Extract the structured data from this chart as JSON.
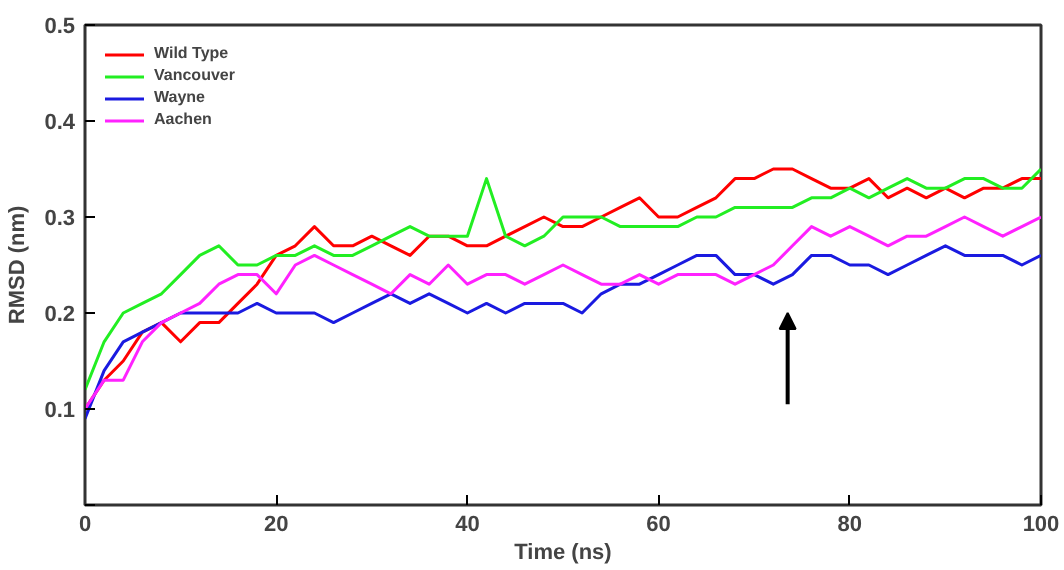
{
  "chart_data": {
    "type": "line",
    "xlabel": "Time (ns)",
    "ylabel": "RMSD (nm)",
    "x": [
      0,
      2,
      4,
      6,
      8,
      10,
      12,
      14,
      16,
      18,
      20,
      22,
      24,
      26,
      28,
      30,
      32,
      34,
      36,
      38,
      40,
      42,
      44,
      46,
      48,
      50,
      52,
      54,
      56,
      58,
      60,
      62,
      64,
      66,
      68,
      70,
      72,
      74,
      76,
      78,
      80,
      82,
      84,
      86,
      88,
      90,
      92,
      94,
      96,
      98,
      100
    ],
    "series": [
      {
        "name": "Wild Type",
        "color": "#ff0000",
        "values": [
          0.1,
          0.13,
          0.15,
          0.18,
          0.19,
          0.17,
          0.19,
          0.19,
          0.21,
          0.23,
          0.26,
          0.27,
          0.29,
          0.27,
          0.27,
          0.28,
          0.27,
          0.26,
          0.28,
          0.28,
          0.27,
          0.27,
          0.28,
          0.29,
          0.3,
          0.29,
          0.29,
          0.3,
          0.31,
          0.32,
          0.3,
          0.3,
          0.31,
          0.32,
          0.34,
          0.34,
          0.35,
          0.35,
          0.34,
          0.33,
          0.33,
          0.34,
          0.32,
          0.33,
          0.32,
          0.33,
          0.32,
          0.33,
          0.33,
          0.34,
          0.34
        ]
      },
      {
        "name": "Vancouver",
        "color": "#22ee22",
        "values": [
          0.12,
          0.17,
          0.2,
          0.21,
          0.22,
          0.24,
          0.26,
          0.27,
          0.25,
          0.25,
          0.26,
          0.26,
          0.27,
          0.26,
          0.26,
          0.27,
          0.28,
          0.29,
          0.28,
          0.28,
          0.28,
          0.34,
          0.28,
          0.27,
          0.28,
          0.3,
          0.3,
          0.3,
          0.29,
          0.29,
          0.29,
          0.29,
          0.3,
          0.3,
          0.31,
          0.31,
          0.31,
          0.31,
          0.32,
          0.32,
          0.33,
          0.32,
          0.33,
          0.34,
          0.33,
          0.33,
          0.34,
          0.34,
          0.33,
          0.33,
          0.35
        ]
      },
      {
        "name": "Wayne",
        "color": "#1a1ae0",
        "values": [
          0.09,
          0.14,
          0.17,
          0.18,
          0.19,
          0.2,
          0.2,
          0.2,
          0.2,
          0.21,
          0.2,
          0.2,
          0.2,
          0.19,
          0.2,
          0.21,
          0.22,
          0.21,
          0.22,
          0.21,
          0.2,
          0.21,
          0.2,
          0.21,
          0.21,
          0.21,
          0.2,
          0.22,
          0.23,
          0.23,
          0.24,
          0.25,
          0.26,
          0.26,
          0.24,
          0.24,
          0.23,
          0.24,
          0.26,
          0.26,
          0.25,
          0.25,
          0.24,
          0.25,
          0.26,
          0.27,
          0.26,
          0.26,
          0.26,
          0.25,
          0.26
        ]
      },
      {
        "name": "Aachen",
        "color": "#ff22ff",
        "values": [
          0.1,
          0.13,
          0.13,
          0.17,
          0.19,
          0.2,
          0.21,
          0.23,
          0.24,
          0.24,
          0.22,
          0.25,
          0.26,
          0.25,
          0.24,
          0.23,
          0.22,
          0.24,
          0.23,
          0.25,
          0.23,
          0.24,
          0.24,
          0.23,
          0.24,
          0.25,
          0.24,
          0.23,
          0.23,
          0.24,
          0.23,
          0.24,
          0.24,
          0.24,
          0.23,
          0.24,
          0.25,
          0.27,
          0.29,
          0.28,
          0.29,
          0.28,
          0.27,
          0.28,
          0.28,
          0.29,
          0.3,
          0.29,
          0.28,
          0.29,
          0.3
        ]
      }
    ],
    "xlim": [
      0,
      100
    ],
    "xticks": [
      0,
      20,
      40,
      60,
      80,
      100
    ],
    "ylim": [
      0,
      0.5
    ],
    "yticks": [
      {
        "value": 0,
        "label": null
      },
      0.1,
      0.2,
      0.3,
      0.4,
      0.5
    ],
    "legend": "top left",
    "grid": false,
    "marker": "none",
    "line_style": "solid"
  }
}
